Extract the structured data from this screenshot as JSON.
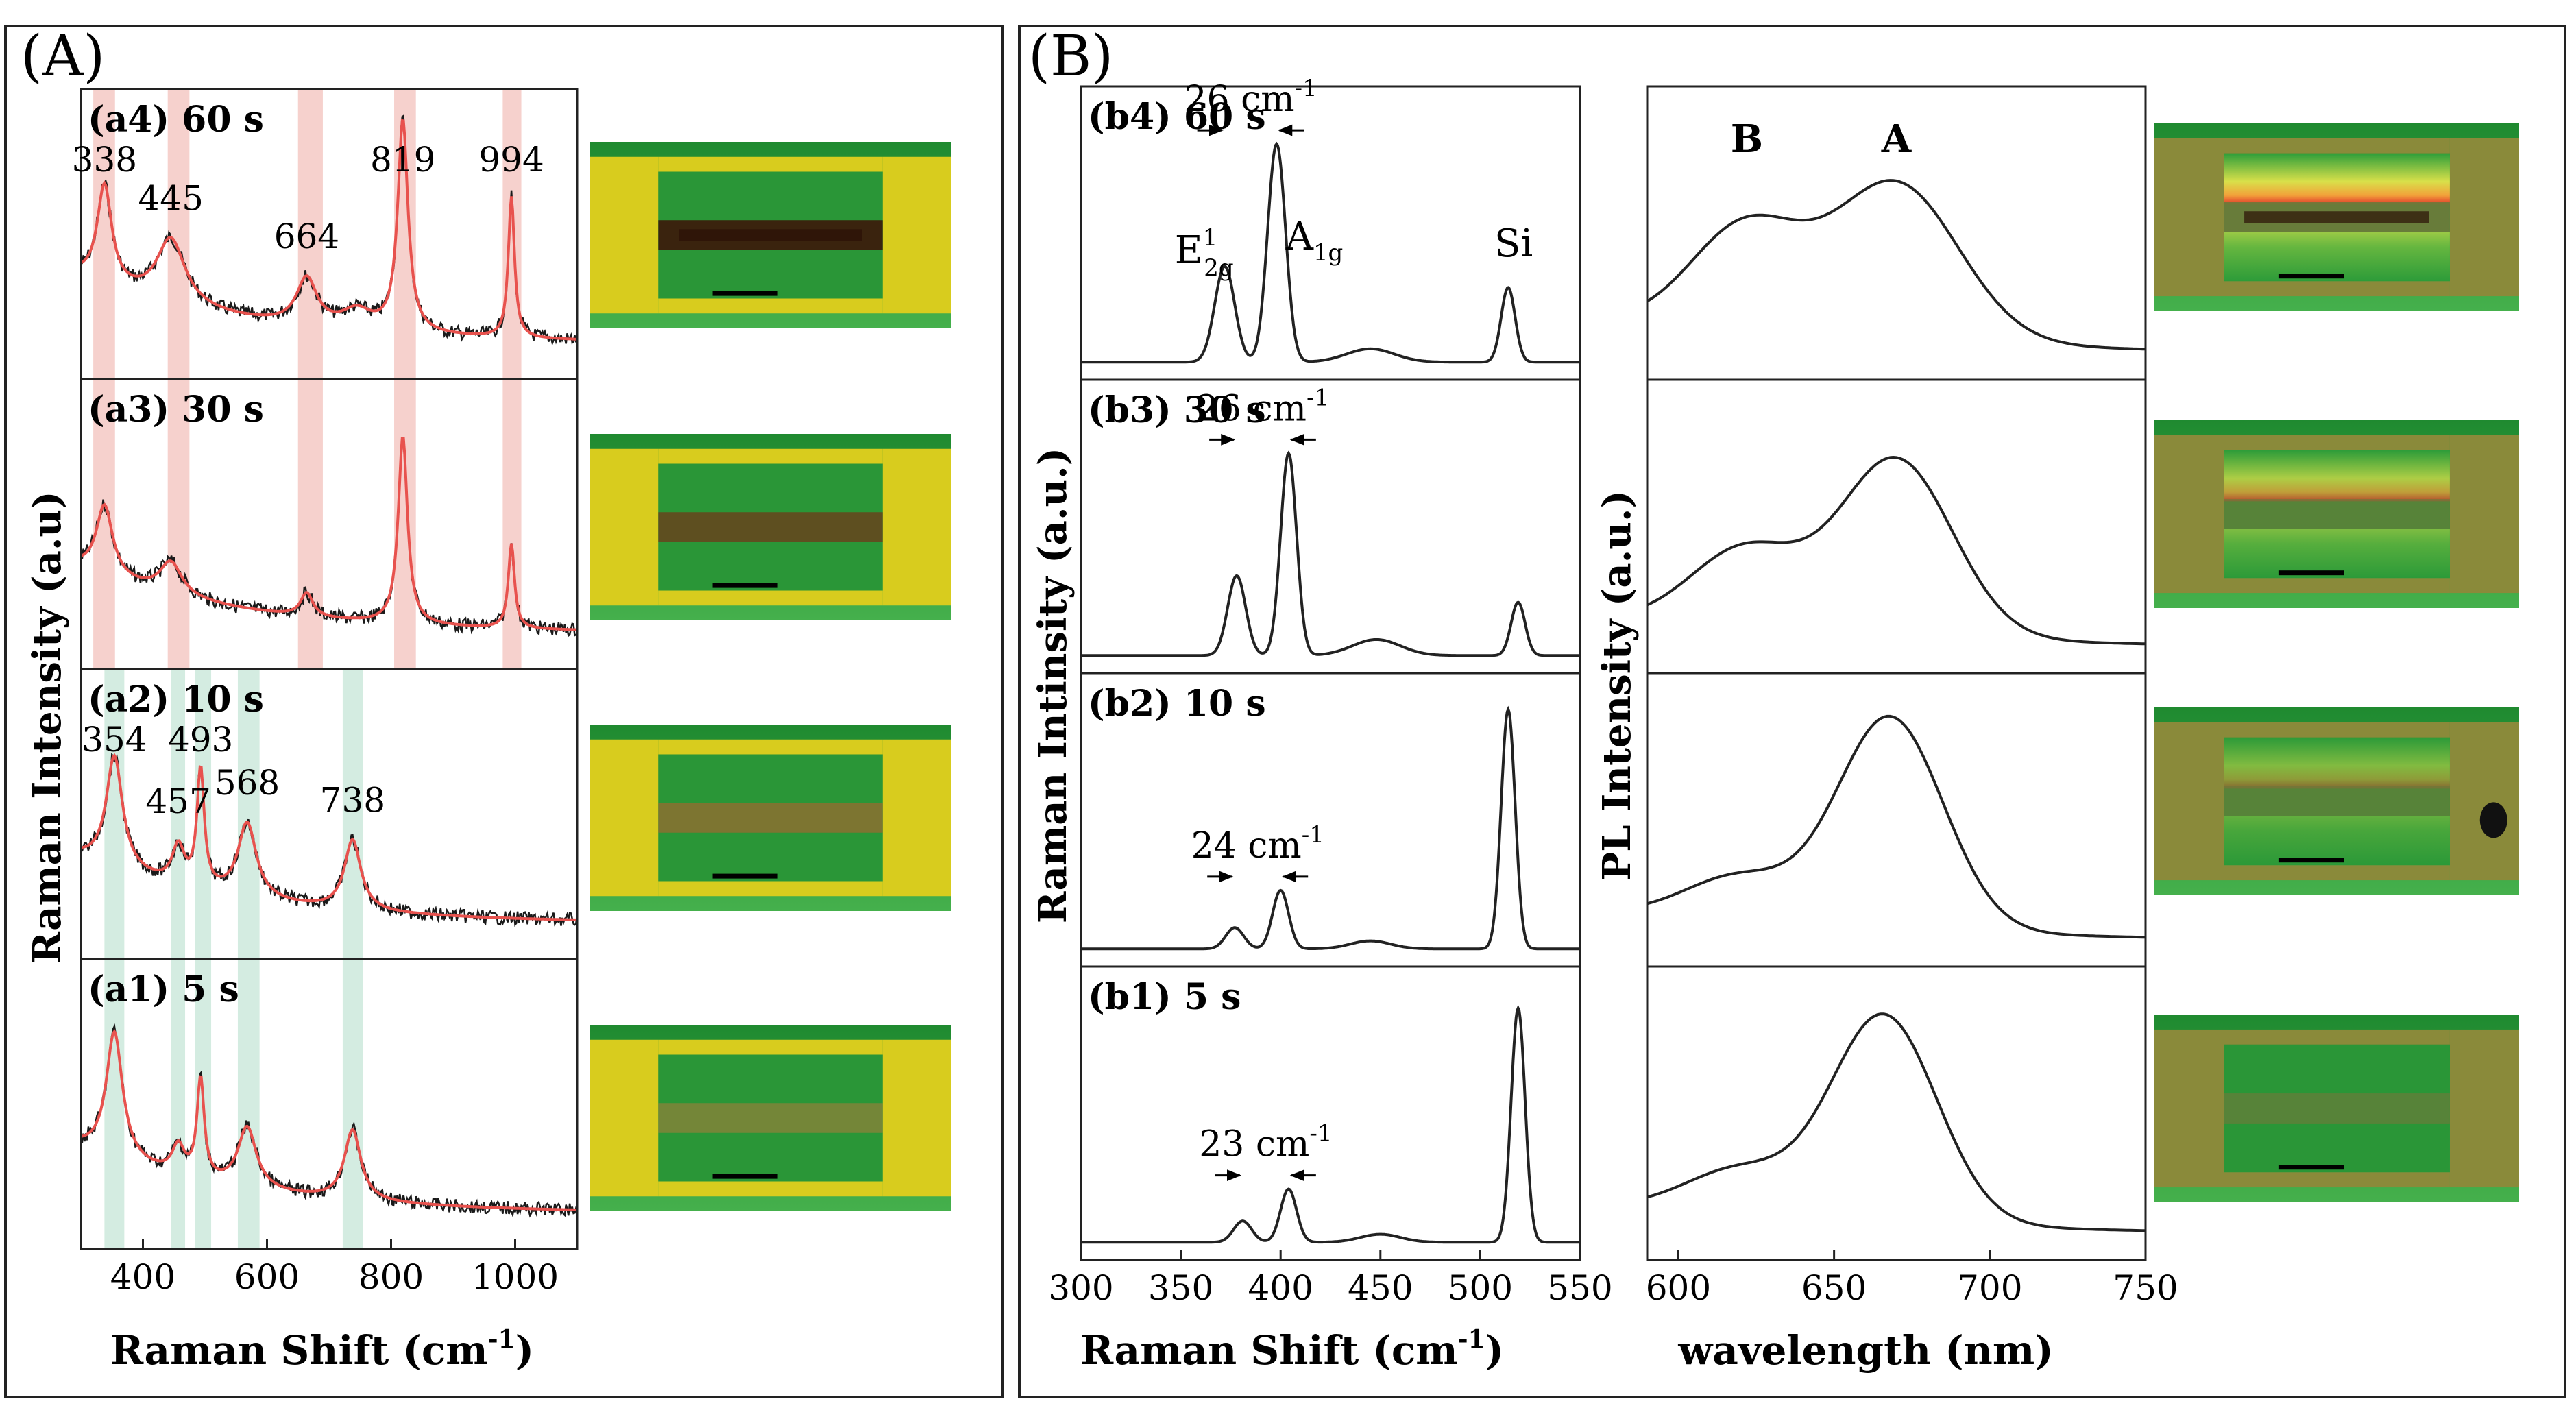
{
  "panel_labels": {
    "A": "(A)",
    "B": "(B)"
  },
  "colors": {
    "spectrum_red": "#e8524e",
    "spectrum_dark": "#1a1a1a",
    "band_red": "#f4c9c4",
    "band_green": "#cde9dc",
    "device_green": "#2e9e3a",
    "device_yellow": "#d8cc1e",
    "device_olive": "#8a8a3a",
    "flake_brown": "#8b5a2b"
  },
  "chart_data": [
    {
      "id": "A",
      "type": "line",
      "title": "",
      "xlabel": "Raman Shift (cm-1)",
      "xlabel_main": "Raman Shift (cm",
      "xlabel_sup": "-1",
      "xlabel_end": ")",
      "ylabel": "Raman Intensity (a.u)",
      "xlim": [
        300,
        1100
      ],
      "xticks": [
        400,
        600,
        800,
        1000
      ],
      "xtick_labels": [
        "400",
        "600",
        "800",
        "1000"
      ],
      "grid": false,
      "band_groups": {
        "red": [
          [
            320,
            355
          ],
          [
            440,
            475
          ],
          [
            650,
            690
          ],
          [
            805,
            840
          ],
          [
            980,
            1010
          ]
        ],
        "green": [
          [
            338,
            370
          ],
          [
            445,
            468
          ],
          [
            484,
            510
          ],
          [
            553,
            588
          ],
          [
            722,
            755
          ]
        ]
      },
      "subplots": [
        {
          "id": "a4",
          "label": "(a4) 60 s",
          "bands": "red",
          "peaks": [
            {
              "x": 338,
              "h": 0.42,
              "w": 14
            },
            {
              "x": 445,
              "h": 0.28,
              "w": 28
            },
            {
              "x": 664,
              "h": 0.2,
              "w": 20
            },
            {
              "x": 745,
              "h": 0.08,
              "w": 30
            },
            {
              "x": 819,
              "h": 0.9,
              "w": 10
            },
            {
              "x": 994,
              "h": 0.6,
              "w": 6
            }
          ],
          "annotations": [
            {
              "x": 338,
              "text": "338"
            },
            {
              "x": 445,
              "text": "445"
            },
            {
              "x": 664,
              "text": "664"
            },
            {
              "x": 819,
              "text": "819"
            },
            {
              "x": 994,
              "text": "994"
            }
          ]
        },
        {
          "id": "a3",
          "label": "(a3) 30 s",
          "bands": "red",
          "peaks": [
            {
              "x": 338,
              "h": 0.3,
              "w": 16
            },
            {
              "x": 445,
              "h": 0.14,
              "w": 22
            },
            {
              "x": 664,
              "h": 0.1,
              "w": 12
            },
            {
              "x": 819,
              "h": 0.8,
              "w": 9
            },
            {
              "x": 994,
              "h": 0.36,
              "w": 6
            }
          ],
          "annotations": []
        },
        {
          "id": "a2",
          "label": "(a2) 10 s",
          "bands": "green",
          "peaks": [
            {
              "x": 354,
              "h": 0.48,
              "w": 16
            },
            {
              "x": 457,
              "h": 0.16,
              "w": 12
            },
            {
              "x": 493,
              "h": 0.5,
              "w": 7
            },
            {
              "x": 568,
              "h": 0.32,
              "w": 18
            },
            {
              "x": 738,
              "h": 0.3,
              "w": 16
            }
          ],
          "annotations": [
            {
              "x": 354,
              "text": "354"
            },
            {
              "x": 457,
              "text": "457"
            },
            {
              "x": 493,
              "text": "493"
            },
            {
              "x": 568,
              "text": "568"
            },
            {
              "x": 738,
              "text": "738"
            }
          ]
        },
        {
          "id": "a1",
          "label": "(a1) 5 s",
          "bands": "green",
          "peaks": [
            {
              "x": 354,
              "h": 0.54,
              "w": 16
            },
            {
              "x": 457,
              "h": 0.12,
              "w": 12
            },
            {
              "x": 493,
              "h": 0.42,
              "w": 7
            },
            {
              "x": 568,
              "h": 0.26,
              "w": 18
            },
            {
              "x": 738,
              "h": 0.3,
              "w": 16
            }
          ],
          "annotations": []
        }
      ]
    },
    {
      "id": "B-Raman",
      "type": "line",
      "title": "",
      "xlabel": "Raman Shift (cm-1)",
      "xlabel_main": "Raman Shift (cm",
      "xlabel_sup": "-1",
      "xlabel_end": ")",
      "ylabel": "Raman Intinsity (a.u.)",
      "xlim": [
        300,
        550
      ],
      "xticks": [
        300,
        350,
        400,
        450,
        500,
        550
      ],
      "xtick_labels": [
        "300",
        "350",
        "400",
        "450",
        "500",
        "550"
      ],
      "grid": false,
      "subplots": [
        {
          "id": "b4",
          "label": "(b4) 60 s",
          "peaks": [
            {
              "x": 372,
              "h": 0.36,
              "w": 5
            },
            {
              "x": 398,
              "h": 0.82,
              "w": 4.5
            },
            {
              "x": 445,
              "h": 0.05,
              "w": 12
            },
            {
              "x": 514,
              "h": 0.28,
              "w": 3.5
            }
          ],
          "separation": "26 cm",
          "separation_sup": "-1",
          "sep_from": 372,
          "sep_to": 398,
          "peak_labels": {
            "e2g_main": "E",
            "e2g_sup": "1",
            "e2g_sub": "2g",
            "a1g_main": "A",
            "a1g_sub": "1g",
            "si": "Si"
          }
        },
        {
          "id": "b3",
          "label": "(b3) 30 s",
          "peaks": [
            {
              "x": 378,
              "h": 0.3,
              "w": 4.5
            },
            {
              "x": 404,
              "h": 0.76,
              "w": 4
            },
            {
              "x": 448,
              "h": 0.06,
              "w": 12
            },
            {
              "x": 519,
              "h": 0.2,
              "w": 3.5
            }
          ],
          "separation": "26 cm",
          "separation_sup": "-1",
          "sep_from": 378,
          "sep_to": 404
        },
        {
          "id": "b2",
          "label": "(b2) 10 s",
          "peaks": [
            {
              "x": 377,
              "h": 0.08,
              "w": 4.5
            },
            {
              "x": 400,
              "h": 0.22,
              "w": 4
            },
            {
              "x": 445,
              "h": 0.03,
              "w": 10
            },
            {
              "x": 514,
              "h": 0.9,
              "w": 3.5
            }
          ],
          "separation": "24 cm",
          "separation_sup": "-1",
          "sep_from": 377,
          "sep_to": 400
        },
        {
          "id": "b1",
          "label": "(b1) 5 s",
          "peaks": [
            {
              "x": 381,
              "h": 0.08,
              "w": 4.5
            },
            {
              "x": 404,
              "h": 0.2,
              "w": 4
            },
            {
              "x": 450,
              "h": 0.03,
              "w": 10
            },
            {
              "x": 519,
              "h": 0.88,
              "w": 3.5
            }
          ],
          "separation": "23 cm",
          "separation_sup": "-1",
          "sep_from": 381,
          "sep_to": 404
        }
      ]
    },
    {
      "id": "B-PL",
      "type": "line",
      "title": "",
      "xlabel": "wavelength (nm)",
      "ylabel": "PL Intensity (a.u.)",
      "xlim": [
        590,
        750
      ],
      "xticks": [
        600,
        650,
        700,
        750
      ],
      "xtick_labels": [
        "600",
        "650",
        "700",
        "750"
      ],
      "grid": false,
      "peak_letters": [
        {
          "x": 622,
          "text": "B"
        },
        {
          "x": 670,
          "text": "A"
        }
      ],
      "subplots": [
        {
          "id": "pl4",
          "A": {
            "x": 670,
            "h": 0.62,
            "w": 20
          },
          "B": {
            "x": 622,
            "h": 0.42,
            "w": 18
          },
          "base": 0.14
        },
        {
          "id": "pl3",
          "A": {
            "x": 670,
            "h": 0.7,
            "w": 18
          },
          "B": {
            "x": 622,
            "h": 0.32,
            "w": 18
          },
          "base": 0.12
        },
        {
          "id": "pl2",
          "A": {
            "x": 668,
            "h": 0.84,
            "w": 17
          },
          "B": {
            "x": 620,
            "h": 0.18,
            "w": 18
          },
          "base": 0.12
        },
        {
          "id": "pl1",
          "A": {
            "x": 666,
            "h": 0.82,
            "w": 17
          },
          "B": {
            "x": 620,
            "h": 0.18,
            "w": 18
          },
          "base": 0.12
        }
      ]
    }
  ],
  "micrographs_A": [
    {
      "id": "a4",
      "variant": "dark"
    },
    {
      "id": "a3",
      "variant": "mottled"
    },
    {
      "id": "a2",
      "variant": "brown"
    },
    {
      "id": "a1",
      "variant": "light"
    }
  ],
  "micrographs_B": [
    {
      "id": "b4",
      "variant": "glow-strong"
    },
    {
      "id": "b3",
      "variant": "glow-medium"
    },
    {
      "id": "b2",
      "variant": "glow-weak"
    },
    {
      "id": "b1",
      "variant": "plain"
    }
  ]
}
